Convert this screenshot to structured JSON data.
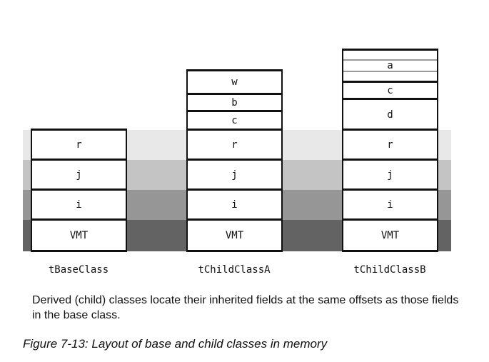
{
  "bands": {
    "colors": [
      "#e8e8e8",
      "#c4c4c4",
      "#969696",
      "#636363"
    ]
  },
  "columns": [
    {
      "name": "tBaseClass",
      "fields": [
        "r",
        "j",
        "i",
        "VMT"
      ]
    },
    {
      "name": "tChildClassA",
      "fields": [
        "w",
        "b",
        "c",
        "r",
        "j",
        "i",
        "VMT"
      ]
    },
    {
      "name": "tChildClassB",
      "fields": [
        "a",
        "c",
        "d",
        "r",
        "j",
        "i",
        "VMT"
      ]
    }
  ],
  "caption": "Derived (child) classes locate their inherited fields at the same offsets as those fields in the base class.",
  "figure_title": "Figure 7-13: Layout of base and child classes in memory"
}
